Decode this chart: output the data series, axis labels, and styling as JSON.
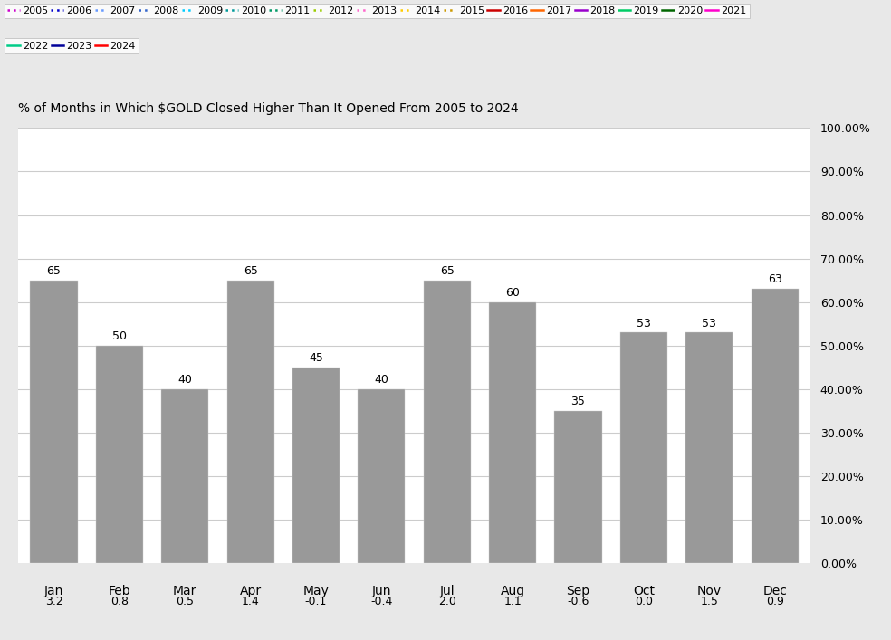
{
  "title": "% of Months in Which $GOLD Closed Higher Than It Opened From 2005 to 2024",
  "months": [
    "Jan",
    "Feb",
    "Mar",
    "Apr",
    "May",
    "Jun",
    "Jul",
    "Aug",
    "Sep",
    "Oct",
    "Nov",
    "Dec"
  ],
  "bar_values": [
    65,
    50,
    40,
    65,
    45,
    40,
    65,
    60,
    35,
    53,
    53,
    63
  ],
  "bottom_labels": [
    "3.2",
    "0.8",
    "0.5",
    "1.4",
    "-0.1",
    "-0.4",
    "2.0",
    "1.1",
    "-0.6",
    "0.0",
    "1.5",
    "0.9"
  ],
  "bar_color": "#999999",
  "background_color": "#e8e8e8",
  "plot_bg_color": "#ffffff",
  "ylim": [
    0,
    100
  ],
  "yticks": [
    0,
    10,
    20,
    30,
    40,
    50,
    60,
    70,
    80,
    90,
    100
  ],
  "ytick_labels": [
    "0.00%",
    "10.00%",
    "20.00%",
    "30.00%",
    "40.00%",
    "50.00%",
    "60.00%",
    "70.00%",
    "80.00%",
    "90.00%",
    "100.00%"
  ],
  "legend_years": [
    "2005",
    "2006",
    "2007",
    "2008",
    "2009",
    "2010",
    "2011",
    "2012",
    "2013",
    "2014",
    "2015",
    "2016",
    "2017",
    "2018",
    "2019",
    "2020",
    "2021",
    "2022",
    "2023",
    "2024"
  ],
  "legend_colors": [
    "#cc00cc",
    "#0000cc",
    "#6699ff",
    "#3366cc",
    "#00ccff",
    "#009999",
    "#009966",
    "#99cc00",
    "#ff66cc",
    "#ffcc00",
    "#cc9900",
    "#cc0000",
    "#ff6600",
    "#9900cc",
    "#00cc66",
    "#006600",
    "#ff00cc",
    "#00cc88",
    "#000099",
    "#ff0000"
  ],
  "legend_styles": [
    "dotted",
    "dotted",
    "dotted",
    "dotted",
    "dotted",
    "dotted",
    "dotted",
    "dotted",
    "dotted",
    "dotted",
    "dotted",
    "solid",
    "solid",
    "solid",
    "solid",
    "solid",
    "solid",
    "solid",
    "solid",
    "solid"
  ],
  "row1_count": 17,
  "row2_count": 3
}
